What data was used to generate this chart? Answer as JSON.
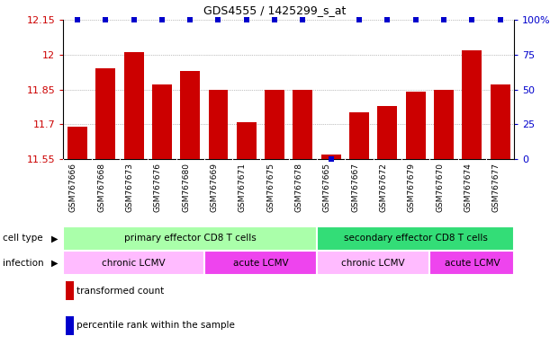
{
  "title": "GDS4555 / 1425299_s_at",
  "samples": [
    "GSM767666",
    "GSM767668",
    "GSM767673",
    "GSM767676",
    "GSM767680",
    "GSM767669",
    "GSM767671",
    "GSM767675",
    "GSM767678",
    "GSM767665",
    "GSM767667",
    "GSM767672",
    "GSM767679",
    "GSM767670",
    "GSM767674",
    "GSM767677"
  ],
  "bar_values": [
    11.69,
    11.94,
    12.01,
    11.87,
    11.93,
    11.85,
    11.71,
    11.85,
    11.85,
    11.57,
    11.75,
    11.78,
    11.84,
    11.85,
    12.02,
    11.87
  ],
  "percentile_values": [
    100,
    100,
    100,
    100,
    100,
    100,
    100,
    100,
    100,
    0,
    100,
    100,
    100,
    100,
    100,
    100
  ],
  "ylim": [
    11.55,
    12.15
  ],
  "yticks": [
    11.55,
    11.7,
    11.85,
    12.0,
    12.15
  ],
  "ytick_labels": [
    "11.55",
    "11.7",
    "11.85",
    "12",
    "12.15"
  ],
  "y2lim": [
    0,
    100
  ],
  "y2ticks": [
    0,
    25,
    50,
    75,
    100
  ],
  "y2tick_labels": [
    "0",
    "25",
    "50",
    "75",
    "100%"
  ],
  "bar_color": "#cc0000",
  "dot_color": "#0000cc",
  "cell_type_groups": [
    {
      "label": "primary effector CD8 T cells",
      "start": 0,
      "end": 9,
      "color": "#aaffaa"
    },
    {
      "label": "secondary effector CD8 T cells",
      "start": 9,
      "end": 16,
      "color": "#33dd77"
    }
  ],
  "infection_groups": [
    {
      "label": "chronic LCMV",
      "start": 0,
      "end": 5,
      "color": "#ffbbff"
    },
    {
      "label": "acute LCMV",
      "start": 5,
      "end": 9,
      "color": "#ee44ee"
    },
    {
      "label": "chronic LCMV",
      "start": 9,
      "end": 13,
      "color": "#ffbbff"
    },
    {
      "label": "acute LCMV",
      "start": 13,
      "end": 16,
      "color": "#ee44ee"
    }
  ],
  "legend_items": [
    {
      "label": "transformed count",
      "color": "#cc0000"
    },
    {
      "label": "percentile rank within the sample",
      "color": "#0000cc"
    }
  ],
  "bg_color": "#ffffff",
  "grid_color": "#888888",
  "axis_label_color_left": "#cc0000",
  "axis_label_color_right": "#0000cc",
  "xtick_bg": "#cccccc"
}
